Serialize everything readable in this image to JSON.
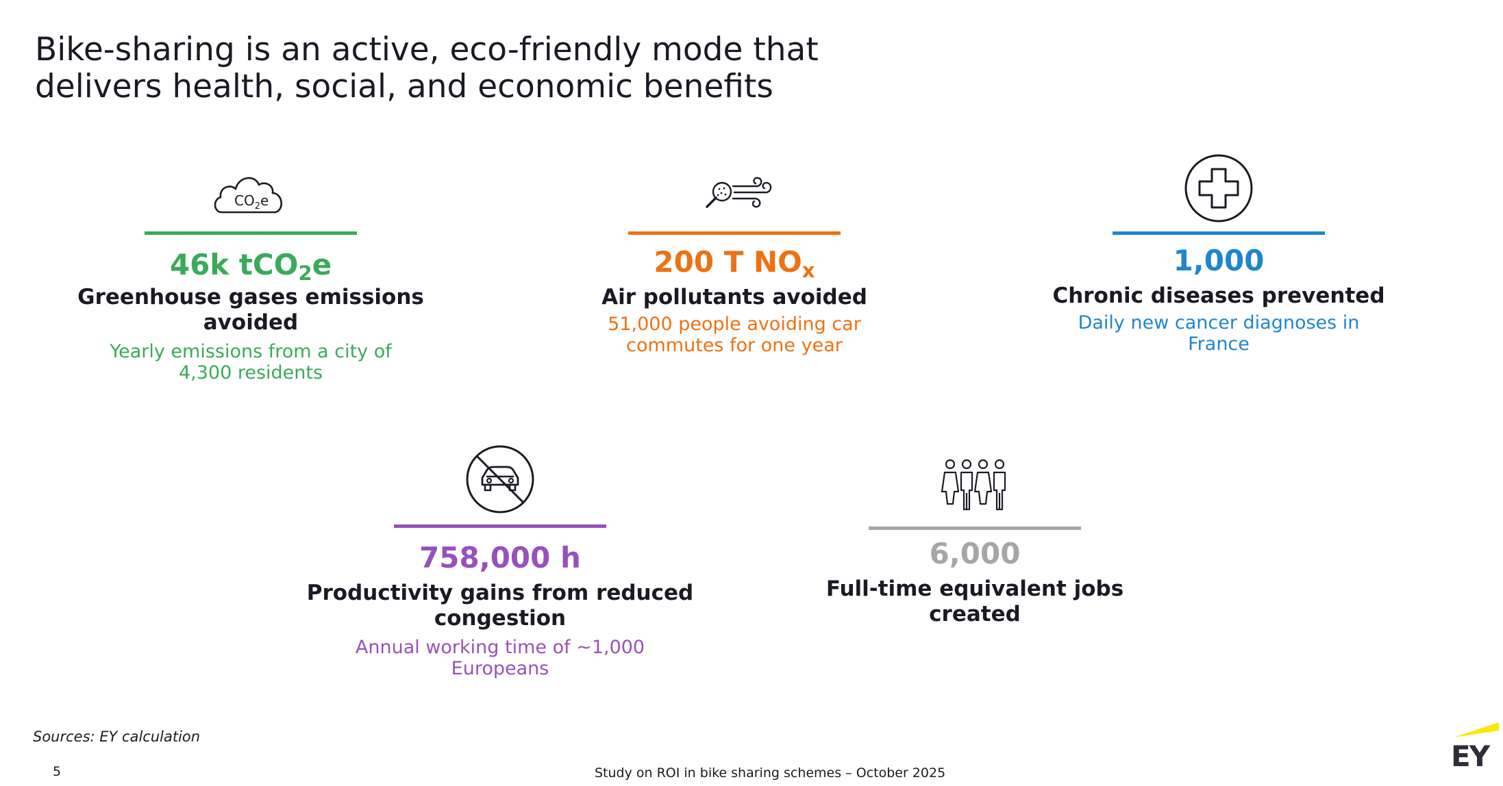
{
  "title": {
    "line1": "Bike-sharing is an active, eco-friendly mode that",
    "line2": "delivers health, social, and economic benefits"
  },
  "colors": {
    "green": "#3aaa5a",
    "orange": "#ee7112",
    "blue": "#1e86cf",
    "purple": "#9751bd",
    "grey": "#a6a6a6",
    "ey_yellow": "#ffe600"
  },
  "cards": {
    "ghg": {
      "icon": "co2-cloud-icon",
      "icon_text_main": "CO",
      "icon_text_sub": "2",
      "icon_text_end": "e",
      "value_main": "46k tCO",
      "value_sub": "2",
      "value_end": "e",
      "label_line1": "Greenhouse gases emissions",
      "label_line2": "avoided",
      "desc_line1": "Yearly emissions from a city of",
      "desc_line2": "4,300 residents"
    },
    "air": {
      "icon": "air-pollution-magnifier-icon",
      "value_main": "200 T NO",
      "value_sub": "x",
      "label_line1": "Air pollutants avoided",
      "desc_line1": "51,000 people avoiding car",
      "desc_line2": "commutes for one year"
    },
    "health": {
      "icon": "medical-cross-icon",
      "value": "1,000",
      "label_line1": "Chronic diseases prevented",
      "desc_line1": "Daily new cancer diagnoses in",
      "desc_line2": "France"
    },
    "productivity": {
      "icon": "no-car-icon",
      "value": "758,000 h",
      "label_line1": "Productivity gains from reduced",
      "label_line2": "congestion",
      "desc_line1": "Annual working time of ~1,000",
      "desc_line2": "Europeans"
    },
    "jobs": {
      "icon": "people-group-icon",
      "value": "6,000",
      "label_line1": "Full-time equivalent jobs",
      "label_line2": "created"
    }
  },
  "footer": {
    "sources": "Sources: EY calculation",
    "page_number": "5",
    "study": "Study on ROI in bike sharing schemes – October 2025",
    "logo_text": "EY"
  }
}
